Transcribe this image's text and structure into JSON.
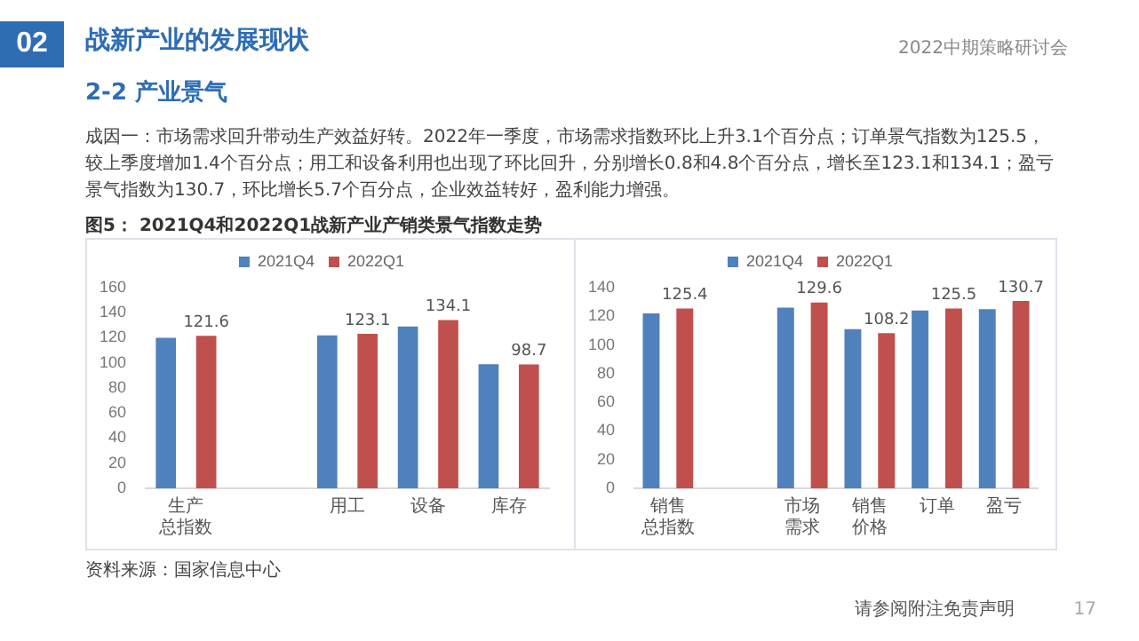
{
  "chart_data": [
    {
      "type": "bar",
      "title": "图5：  2021Q4和2022Q1战新产业产销类景气指数走势",
      "annotations": [
        "02",
        "战新产业的发展现状",
        "2-2 产业景气",
        "2022中期策略研讨会",
        "成因一：市场需求回升带动生产效益好转。2022年一季度，市场需求指数环比上升3.1个百分点；订单景气指数为125.5，较上季度增加1.4个百分点；用工和设备利用也出现了环比回升，分别增长0.8和4.8个百分点，增长至123.1和134.1；盈亏景气指数为130.7，环比增长5.7个百分点，企业效益转好，盈利能力增强。",
        "资料来源：国家信息中心",
        "请参阅附注免责声明",
        "17"
      ],
      "categories": [
        "生产总指数",
        null,
        "用工",
        "设备",
        "库存"
      ],
      "series": [
        {
          "name": "2021Q4",
          "color": "#4f81bd",
          "values": [
            120,
            null,
            122,
            129,
            99
          ]
        },
        {
          "name": "2022Q1",
          "color": "#c0504d",
          "values": [
            121.6,
            null,
            123.1,
            134.1,
            98.7
          ],
          "value_labels": [
            "121.6",
            null,
            "123.1",
            "134.1",
            "98.7"
          ]
        }
      ],
      "ylim": [
        0,
        160
      ],
      "yticks": [
        0,
        20,
        40,
        60,
        80,
        100,
        120,
        140,
        160
      ],
      "grid": false,
      "legend": "top"
    },
    {
      "type": "bar",
      "categories": [
        "销售总指数",
        null,
        "市场需求",
        "销售价格",
        "订单",
        "盈亏"
      ],
      "series": [
        {
          "name": "2021Q4",
          "color": "#4f81bd",
          "values": [
            122,
            null,
            126,
            111,
            124,
            125
          ]
        },
        {
          "name": "2022Q1",
          "color": "#c0504d",
          "values": [
            125.4,
            null,
            129.6,
            108.2,
            125.5,
            130.7
          ],
          "value_labels": [
            "125.4",
            null,
            "129.6",
            "108.2",
            "125.5",
            "130.7"
          ]
        }
      ],
      "ylim": [
        0,
        140
      ],
      "yticks": [
        0,
        20,
        40,
        60,
        80,
        100,
        120,
        140
      ],
      "grid": false,
      "legend": "top"
    }
  ]
}
